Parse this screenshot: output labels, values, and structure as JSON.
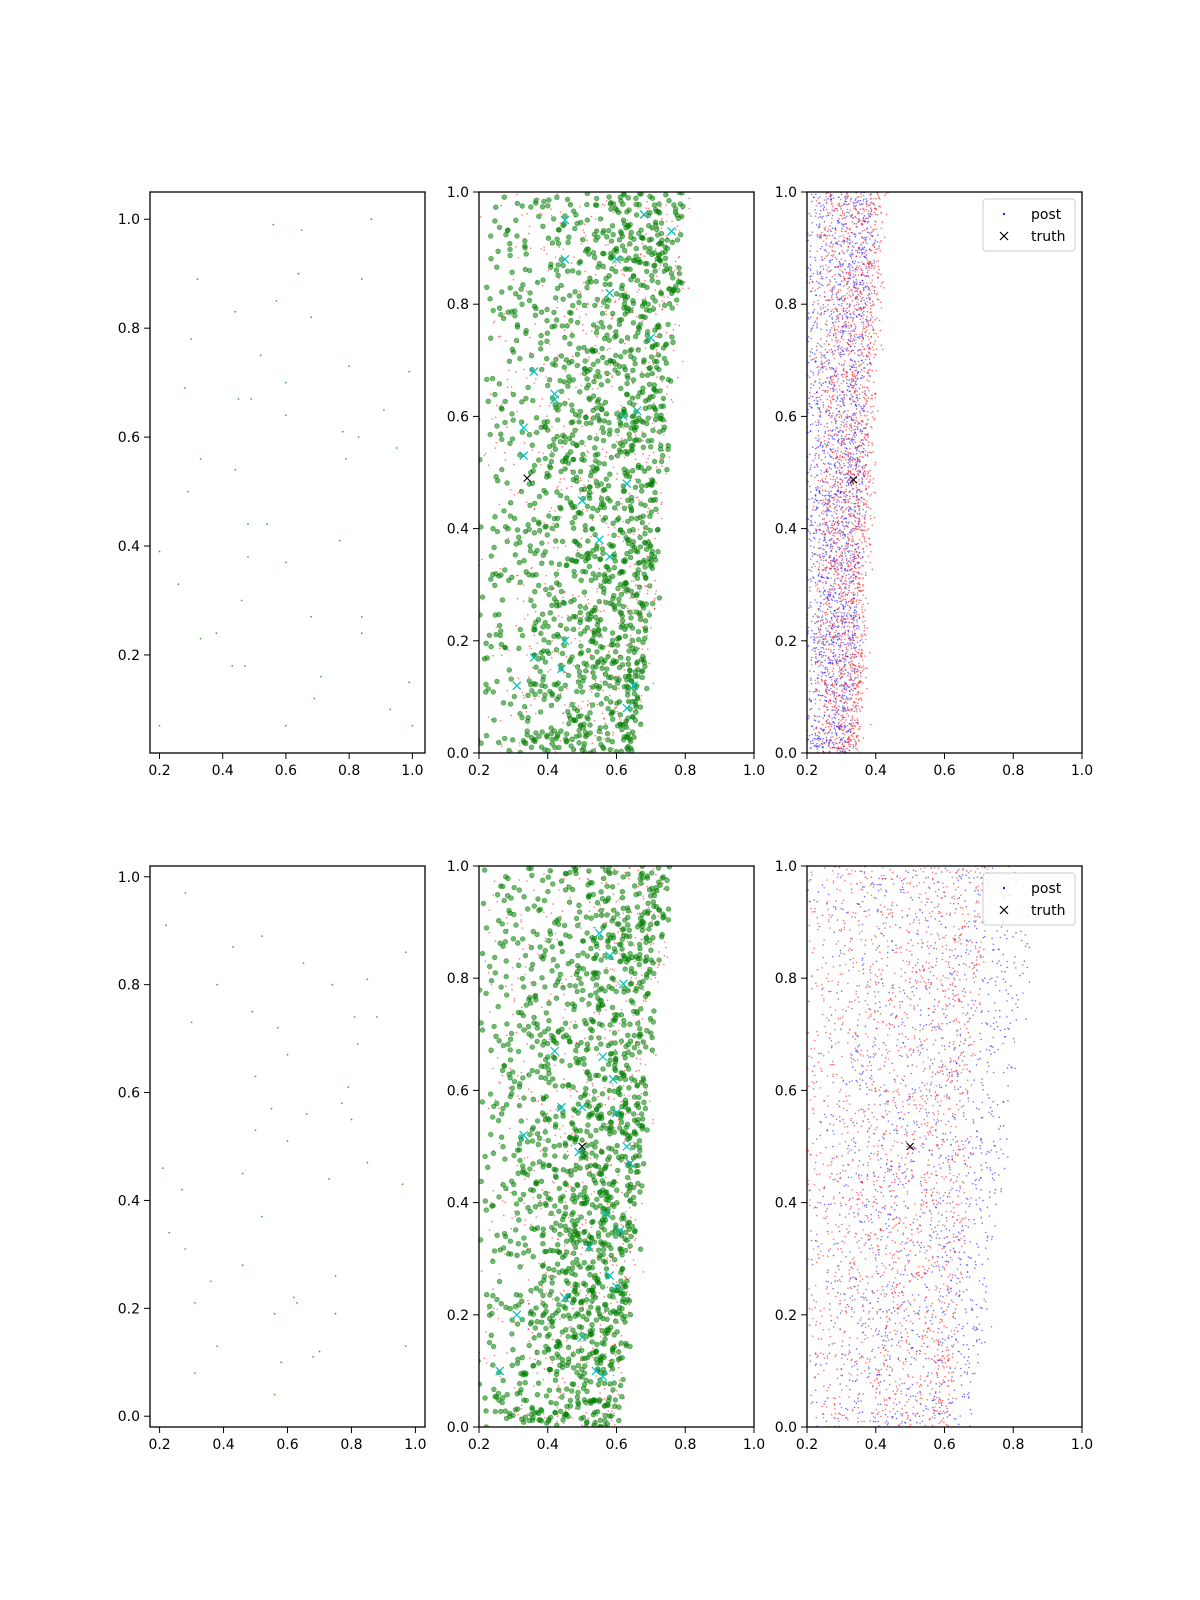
{
  "figure": {
    "background": "#ffffff",
    "colors": {
      "green": "#008000",
      "red": "#ff0000",
      "blue": "#0000ff",
      "cyan": "#00bfbf",
      "black": "#000000",
      "axis": "#000000"
    }
  },
  "chart_data": [
    {
      "type": "scatter",
      "panel": "row-1-col-1",
      "xlim": [
        0.17,
        1.04
      ],
      "ylim": [
        0.02,
        1.05
      ],
      "xticks": [
        "0.2",
        "0.4",
        "0.6",
        "0.8",
        "1.0"
      ],
      "yticks": [
        "0.2",
        "0.4",
        "0.6",
        "0.8",
        "1.0"
      ],
      "grid": false,
      "series": [
        {
          "color": "#008000",
          "marker": "dot",
          "points": [
            [
              0.56,
              0.99
            ],
            [
              0.65,
              0.98
            ],
            [
              0.87,
              1.0
            ],
            [
              0.32,
              0.89
            ],
            [
              0.64,
              0.9
            ],
            [
              0.84,
              0.89
            ],
            [
              0.44,
              0.83
            ],
            [
              0.57,
              0.85
            ],
            [
              0.68,
              0.82
            ],
            [
              0.3,
              0.78
            ],
            [
              0.52,
              0.75
            ],
            [
              0.8,
              0.73
            ],
            [
              0.28,
              0.69
            ],
            [
              0.6,
              0.7
            ],
            [
              0.99,
              0.72
            ],
            [
              0.45,
              0.67
            ],
            [
              0.49,
              0.67
            ],
            [
              0.6,
              0.64
            ],
            [
              0.91,
              0.65
            ],
            [
              0.78,
              0.61
            ],
            [
              0.83,
              0.6
            ],
            [
              0.95,
              0.58
            ],
            [
              0.33,
              0.56
            ],
            [
              0.44,
              0.54
            ],
            [
              0.79,
              0.56
            ],
            [
              0.29,
              0.5
            ],
            [
              0.48,
              0.44
            ],
            [
              0.54,
              0.44
            ],
            [
              0.2,
              0.39
            ],
            [
              0.48,
              0.38
            ],
            [
              0.6,
              0.37
            ],
            [
              0.77,
              0.41
            ],
            [
              0.26,
              0.33
            ],
            [
              0.46,
              0.3
            ],
            [
              0.68,
              0.27
            ],
            [
              0.84,
              0.27
            ],
            [
              0.38,
              0.24
            ],
            [
              0.33,
              0.23
            ],
            [
              0.84,
              0.24
            ],
            [
              0.43,
              0.18
            ],
            [
              0.47,
              0.18
            ],
            [
              0.71,
              0.16
            ],
            [
              0.99,
              0.15
            ],
            [
              0.69,
              0.12
            ],
            [
              0.93,
              0.1
            ],
            [
              0.6,
              0.07
            ],
            [
              0.2,
              0.07
            ],
            [
              1.0,
              0.07
            ]
          ]
        }
      ]
    },
    {
      "type": "scatter",
      "panel": "row-1-col-2",
      "xlim": [
        0.2,
        1.0
      ],
      "ylim": [
        0.0,
        1.0
      ],
      "xticks": [
        "0.2",
        "0.4",
        "0.6",
        "0.8",
        "1.0"
      ],
      "yticks": [
        "0.0",
        "0.2",
        "0.4",
        "0.6",
        "0.8",
        "1.0"
      ],
      "grid": false,
      "series": [
        {
          "color": "#ff0000",
          "marker": "dot",
          "distribution": {
            "count": 900,
            "right_edge_at_y0": 0.67,
            "right_edge_at_y1": 0.82,
            "left": 0.2
          }
        },
        {
          "color": "#008000",
          "marker": "circle",
          "distribution": {
            "count": 1500,
            "right_edge_at_y0": 0.66,
            "right_edge_at_y1": 0.8,
            "left": 0.2
          }
        },
        {
          "color": "#00bfbf",
          "marker": "x",
          "points": [
            [
              0.36,
              0.68
            ],
            [
              0.42,
              0.64
            ],
            [
              0.42,
              0.63
            ],
            [
              0.33,
              0.58
            ],
            [
              0.33,
              0.53
            ],
            [
              0.45,
              0.95
            ],
            [
              0.45,
              0.88
            ],
            [
              0.6,
              0.88
            ],
            [
              0.58,
              0.82
            ],
            [
              0.5,
              0.45
            ],
            [
              0.55,
              0.38
            ],
            [
              0.58,
              0.35
            ],
            [
              0.63,
              0.48
            ],
            [
              0.66,
              0.61
            ],
            [
              0.7,
              0.74
            ],
            [
              0.76,
              0.93
            ],
            [
              0.62,
              0.6
            ],
            [
              0.31,
              0.12
            ],
            [
              0.36,
              0.17
            ],
            [
              0.45,
              0.2
            ],
            [
              0.44,
              0.15
            ],
            [
              0.65,
              0.12
            ],
            [
              0.63,
              0.08
            ],
            [
              0.68,
              0.96
            ]
          ]
        },
        {
          "color": "#000000",
          "marker": "x",
          "points": [
            [
              0.34,
              0.49
            ]
          ]
        }
      ]
    },
    {
      "type": "scatter",
      "panel": "row-1-col-3",
      "xlim": [
        0.2,
        1.0
      ],
      "ylim": [
        0.0,
        1.0
      ],
      "xticks": [
        "0.2",
        "0.4",
        "0.6",
        "0.8",
        "1.0"
      ],
      "yticks": [
        "0.0",
        "0.2",
        "0.4",
        "0.6",
        "0.8",
        "1.0"
      ],
      "grid": false,
      "legend": {
        "placement": "top-right",
        "entries": [
          {
            "label": "post",
            "marker": "dot",
            "color": "#0000ff"
          },
          {
            "label": "truth",
            "marker": "x",
            "color": "#000000"
          }
        ]
      },
      "series": [
        {
          "name": "post",
          "color": "#0000ff",
          "marker": "dot",
          "distribution": {
            "count": 2200,
            "xmin": 0.2,
            "xmax_at_y0": 0.33,
            "xmax_at_y1": 0.4
          }
        },
        {
          "color": "#ff0000",
          "marker": "dot",
          "distribution": {
            "count": 2200,
            "xmin": 0.25,
            "xmax_at_y0": 0.35,
            "xmax_at_y1": 0.42
          }
        },
        {
          "name": "truth",
          "color": "#000000",
          "marker": "x",
          "points": [
            [
              0.335,
              0.487
            ]
          ]
        }
      ]
    },
    {
      "type": "scatter",
      "panel": "row-2-col-1",
      "xlim": [
        0.17,
        1.03
      ],
      "ylim": [
        -0.02,
        1.02
      ],
      "xticks": [
        "0.2",
        "0.4",
        "0.6",
        "0.8",
        "1.0"
      ],
      "yticks": [
        "0.0",
        "0.2",
        "0.4",
        "0.6",
        "0.8",
        "1.0"
      ],
      "grid": false,
      "series": [
        {
          "color": "#008000",
          "marker": "dot",
          "points": [
            [
              0.28,
              0.97
            ],
            [
              0.22,
              0.91
            ],
            [
              0.43,
              0.87
            ],
            [
              0.52,
              0.89
            ],
            [
              0.65,
              0.84
            ],
            [
              0.97,
              0.86
            ],
            [
              0.38,
              0.8
            ],
            [
              0.74,
              0.8
            ],
            [
              0.85,
              0.81
            ],
            [
              0.3,
              0.73
            ],
            [
              0.49,
              0.75
            ],
            [
              0.57,
              0.72
            ],
            [
              0.81,
              0.74
            ],
            [
              0.88,
              0.74
            ],
            [
              0.6,
              0.67
            ],
            [
              0.82,
              0.69
            ],
            [
              0.5,
              0.63
            ],
            [
              0.79,
              0.61
            ],
            [
              0.55,
              0.57
            ],
            [
              0.66,
              0.56
            ],
            [
              0.77,
              0.58
            ],
            [
              0.5,
              0.53
            ],
            [
              0.8,
              0.55
            ],
            [
              0.6,
              0.51
            ],
            [
              0.21,
              0.46
            ],
            [
              0.46,
              0.45
            ],
            [
              0.73,
              0.44
            ],
            [
              0.85,
              0.47
            ],
            [
              0.96,
              0.43
            ],
            [
              0.27,
              0.42
            ],
            [
              0.52,
              0.37
            ],
            [
              0.23,
              0.34
            ],
            [
              0.28,
              0.31
            ],
            [
              0.46,
              0.28
            ],
            [
              0.36,
              0.25
            ],
            [
              0.75,
              0.26
            ],
            [
              0.31,
              0.21
            ],
            [
              0.62,
              0.22
            ],
            [
              0.63,
              0.21
            ],
            [
              0.56,
              0.19
            ],
            [
              0.75,
              0.19
            ],
            [
              0.38,
              0.13
            ],
            [
              0.7,
              0.12
            ],
            [
              0.97,
              0.13
            ],
            [
              0.68,
              0.11
            ],
            [
              0.58,
              0.1
            ],
            [
              0.31,
              0.08
            ],
            [
              0.56,
              0.04
            ]
          ]
        }
      ]
    },
    {
      "type": "scatter",
      "panel": "row-2-col-2",
      "xlim": [
        0.2,
        1.0
      ],
      "ylim": [
        0.0,
        1.0
      ],
      "xticks": [
        "0.2",
        "0.4",
        "0.6",
        "0.8",
        "1.0"
      ],
      "yticks": [
        "0.0",
        "0.2",
        "0.4",
        "0.6",
        "0.8",
        "1.0"
      ],
      "grid": false,
      "series": [
        {
          "color": "#ff0000",
          "marker": "dot",
          "distribution": {
            "count": 900,
            "right_edge_at_y0": 0.61,
            "right_edge_at_y1": 0.76,
            "left": 0.2
          }
        },
        {
          "color": "#008000",
          "marker": "circle",
          "distribution": {
            "count": 1500,
            "right_edge_at_y0": 0.6,
            "right_edge_at_y1": 0.75,
            "left": 0.2
          }
        },
        {
          "color": "#00bfbf",
          "marker": "x",
          "points": [
            [
              0.33,
              0.52
            ],
            [
              0.44,
              0.57
            ],
            [
              0.42,
              0.67
            ],
            [
              0.5,
              0.57
            ],
            [
              0.55,
              0.88
            ],
            [
              0.58,
              0.84
            ],
            [
              0.56,
              0.66
            ],
            [
              0.6,
              0.56
            ],
            [
              0.59,
              0.62
            ],
            [
              0.62,
              0.79
            ],
            [
              0.64,
              0.47
            ],
            [
              0.63,
              0.5
            ],
            [
              0.49,
              0.49
            ],
            [
              0.45,
              0.23
            ],
            [
              0.52,
              0.32
            ],
            [
              0.58,
              0.27
            ],
            [
              0.6,
              0.25
            ],
            [
              0.61,
              0.35
            ],
            [
              0.54,
              0.1
            ],
            [
              0.56,
              0.09
            ],
            [
              0.26,
              0.1
            ],
            [
              0.31,
              0.2
            ],
            [
              0.5,
              0.16
            ],
            [
              0.57,
              0.38
            ]
          ]
        },
        {
          "color": "#000000",
          "marker": "x",
          "points": [
            [
              0.5,
              0.5
            ]
          ]
        }
      ]
    },
    {
      "type": "scatter",
      "panel": "row-2-col-3",
      "xlim": [
        0.2,
        1.0
      ],
      "ylim": [
        0.0,
        1.0
      ],
      "xticks": [
        "0.2",
        "0.4",
        "0.6",
        "0.8",
        "1.0"
      ],
      "yticks": [
        "0.0",
        "0.2",
        "0.4",
        "0.6",
        "0.8",
        "1.0"
      ],
      "grid": false,
      "legend": {
        "placement": "top-right",
        "entries": [
          {
            "label": "post",
            "marker": "dot",
            "color": "#0000ff"
          },
          {
            "label": "truth",
            "marker": "x",
            "color": "#000000"
          }
        ]
      },
      "series": [
        {
          "name": "post",
          "color": "#0000ff",
          "marker": "dot",
          "distribution": {
            "count": 1600,
            "xmin": 0.22,
            "xmax_at_y0": 0.68,
            "xmax_at_y1": 0.88
          }
        },
        {
          "color": "#ff0000",
          "marker": "dot",
          "distribution": {
            "count": 2000,
            "xmin": 0.2,
            "xmax_at_y0": 0.62,
            "xmax_at_y1": 0.72
          }
        },
        {
          "name": "truth",
          "color": "#000000",
          "marker": "x",
          "points": [
            [
              0.5,
              0.5
            ]
          ]
        }
      ]
    }
  ]
}
